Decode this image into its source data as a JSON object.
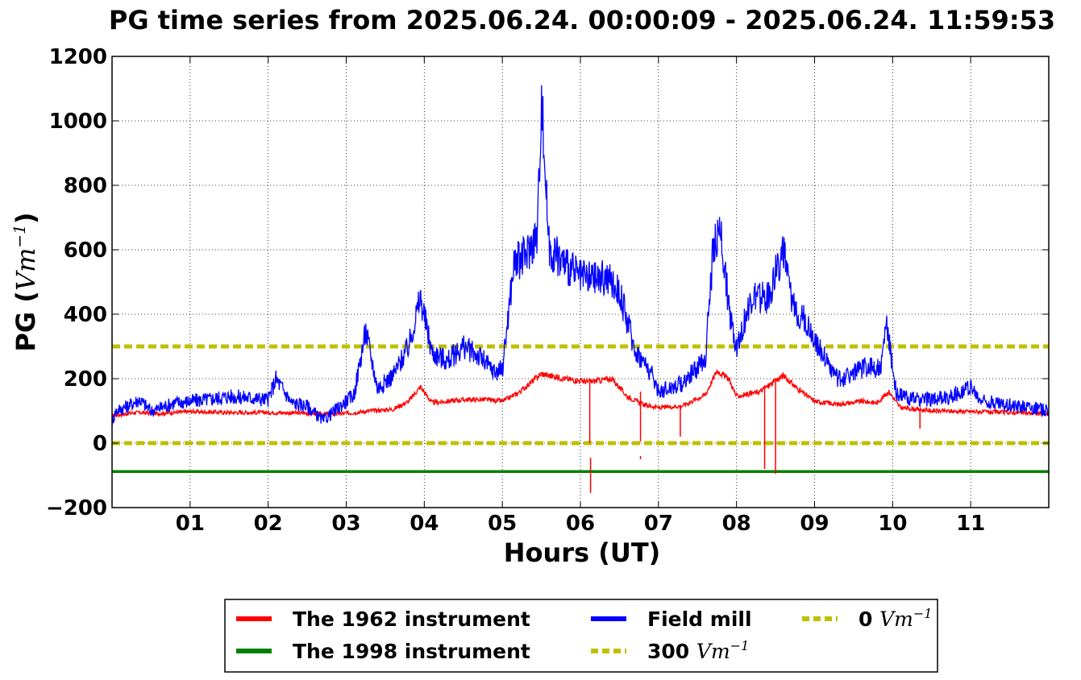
{
  "chart_data": {
    "type": "line",
    "title": "PG time series from 2025.06.24. 00:00:09 - 2025.06.24. 11:59:53",
    "xlabel": "Hours (UT)",
    "ylabel_prefix": "PG (",
    "ylabel_unit": "Vm",
    "ylabel_exp": "−1",
    "ylabel_suffix": ")",
    "xlim": [
      0,
      12
    ],
    "ylim": [
      -200,
      1200
    ],
    "grid": true,
    "x_ticks": [
      {
        "value": 1,
        "label": "01"
      },
      {
        "value": 2,
        "label": "02"
      },
      {
        "value": 3,
        "label": "03"
      },
      {
        "value": 4,
        "label": "04"
      },
      {
        "value": 5,
        "label": "05"
      },
      {
        "value": 6,
        "label": "06"
      },
      {
        "value": 7,
        "label": "07"
      },
      {
        "value": 8,
        "label": "08"
      },
      {
        "value": 9,
        "label": "09"
      },
      {
        "value": 10,
        "label": "10"
      },
      {
        "value": 11,
        "label": "11"
      }
    ],
    "y_ticks": [
      {
        "value": -200,
        "label": "−200"
      },
      {
        "value": 0,
        "label": "0"
      },
      {
        "value": 200,
        "label": "200"
      },
      {
        "value": 400,
        "label": "400"
      },
      {
        "value": 600,
        "label": "600"
      },
      {
        "value": 800,
        "label": "800"
      },
      {
        "value": 1000,
        "label": "1000"
      },
      {
        "value": 1200,
        "label": "1200"
      }
    ],
    "legend_position": "below",
    "series": [
      {
        "name": "The 1962 instrument",
        "color": "#ff0000",
        "x": [
          0,
          0.3,
          0.6,
          1.0,
          1.5,
          2.0,
          2.5,
          2.8,
          3.0,
          3.3,
          3.6,
          3.8,
          3.95,
          4.1,
          4.5,
          4.8,
          5.0,
          5.2,
          5.5,
          5.8,
          6.1,
          6.4,
          6.6,
          6.8,
          7.0,
          7.3,
          7.6,
          7.75,
          7.9,
          8.0,
          8.3,
          8.6,
          8.8,
          9.0,
          9.3,
          9.6,
          9.8,
          9.95,
          10.1,
          10.5,
          11.0,
          11.5,
          12.0
        ],
        "y": [
          85,
          95,
          92,
          98,
          95,
          95,
          93,
          90,
          92,
          100,
          105,
          130,
          175,
          125,
          135,
          135,
          130,
          155,
          215,
          200,
          190,
          200,
          145,
          120,
          110,
          115,
          150,
          225,
          200,
          145,
          160,
          210,
          165,
          130,
          120,
          130,
          125,
          160,
          110,
          100,
          98,
          95,
          90
        ]
      },
      {
        "name": "Field mill",
        "color": "#0000ff",
        "x": [
          0,
          0.05,
          0.2,
          0.35,
          0.5,
          0.8,
          1.2,
          1.5,
          1.8,
          2.0,
          2.1,
          2.3,
          2.5,
          2.7,
          2.9,
          3.1,
          3.25,
          3.4,
          3.6,
          3.8,
          3.95,
          4.1,
          4.3,
          4.5,
          4.7,
          4.9,
          5.0,
          5.15,
          5.3,
          5.45,
          5.5,
          5.6,
          5.8,
          6.0,
          6.2,
          6.35,
          6.5,
          6.7,
          6.9,
          7.0,
          7.3,
          7.6,
          7.7,
          7.8,
          7.9,
          8.0,
          8.2,
          8.4,
          8.6,
          8.7,
          8.9,
          9.1,
          9.3,
          9.5,
          9.7,
          9.85,
          9.92,
          10.05,
          10.3,
          10.7,
          11.0,
          11.1,
          11.4,
          11.7,
          12.0
        ],
        "y": [
          65,
          100,
          115,
          135,
          100,
          125,
          135,
          145,
          140,
          135,
          200,
          125,
          115,
          70,
          110,
          150,
          350,
          170,
          210,
          300,
          450,
          280,
          255,
          300,
          270,
          220,
          230,
          560,
          580,
          650,
          1075,
          600,
          560,
          510,
          510,
          510,
          470,
          290,
          220,
          160,
          185,
          260,
          600,
          660,
          420,
          300,
          450,
          450,
          600,
          440,
          370,
          280,
          195,
          220,
          240,
          230,
          375,
          150,
          135,
          140,
          175,
          135,
          120,
          115,
          100
        ]
      },
      {
        "name": "The 1998 instrument",
        "color": "#008000",
        "x": [
          0,
          12
        ],
        "y": [
          -88,
          -88
        ]
      }
    ],
    "reference_lines": [
      {
        "value": 300,
        "color": "#bfbf00",
        "style": "dashed"
      },
      {
        "value": 0,
        "color": "#bfbf00",
        "style": "dashed"
      }
    ],
    "red_spikes": [
      {
        "x": 6.12,
        "y_top": 190,
        "y_bottom": 0
      },
      {
        "x": 6.13,
        "y_top": -45,
        "y_bottom": -155
      },
      {
        "x": 6.77,
        "y_top": 160,
        "y_bottom": 5
      },
      {
        "x": 6.77,
        "y_top": -40,
        "y_bottom": -50
      },
      {
        "x": 7.28,
        "y_top": 115,
        "y_bottom": 20
      },
      {
        "x": 8.36,
        "y_top": 180,
        "y_bottom": -80
      },
      {
        "x": 8.5,
        "y_top": 190,
        "y_bottom": -95
      },
      {
        "x": 10.35,
        "y_top": 100,
        "y_bottom": 45
      }
    ],
    "legend": [
      {
        "label": "The 1962 instrument",
        "unit": "",
        "exp": "",
        "color": "#ff0000",
        "style": "solid"
      },
      {
        "label": "The 1998 instrument",
        "unit": "",
        "exp": "",
        "color": "#008000",
        "style": "solid"
      },
      {
        "label": "Field mill",
        "unit": "",
        "exp": "",
        "color": "#0000ff",
        "style": "solid"
      },
      {
        "label": "300 ",
        "unit": "Vm",
        "exp": "−1",
        "color": "#bfbf00",
        "style": "dashed"
      },
      {
        "label": "0 ",
        "unit": "Vm",
        "exp": "−1",
        "color": "#bfbf00",
        "style": "dashed"
      }
    ]
  }
}
